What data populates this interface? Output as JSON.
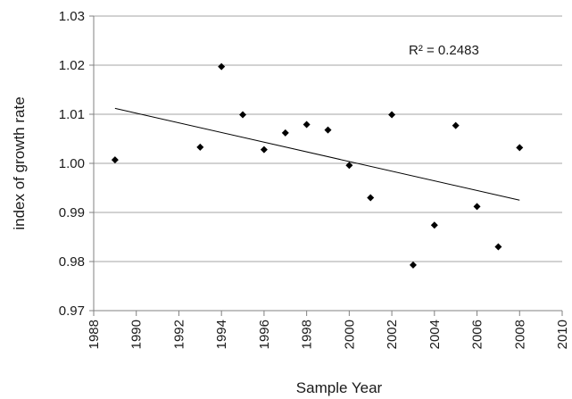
{
  "chart_data": {
    "type": "scatter",
    "title": "",
    "xlabel": "Sample Year",
    "ylabel": "index of growth rate",
    "xlim": [
      1988,
      2010
    ],
    "ylim": [
      0.97,
      1.03
    ],
    "x_ticks": [
      "1988",
      "1990",
      "1992",
      "1994",
      "1996",
      "1998",
      "2000",
      "2002",
      "2004",
      "2006",
      "2008",
      "2010"
    ],
    "y_ticks": [
      "0.97",
      "0.98",
      "0.99",
      "1.00",
      "1.01",
      "1.02",
      "1.03"
    ],
    "grid": "horizontal",
    "legend": "none",
    "series": [
      {
        "marker": "diamond",
        "color": "#000000",
        "points": [
          {
            "x": 1989,
            "y": 1.0007
          },
          {
            "x": 1993,
            "y": 1.0033
          },
          {
            "x": 1994,
            "y": 1.0197
          },
          {
            "x": 1995,
            "y": 1.0099
          },
          {
            "x": 1996,
            "y": 1.0028
          },
          {
            "x": 1997,
            "y": 1.0062
          },
          {
            "x": 1998,
            "y": 1.0079
          },
          {
            "x": 1999,
            "y": 1.0068
          },
          {
            "x": 2000,
            "y": 0.9996
          },
          {
            "x": 2001,
            "y": 0.993
          },
          {
            "x": 2002,
            "y": 1.0099
          },
          {
            "x": 2003,
            "y": 0.9793
          },
          {
            "x": 2004,
            "y": 0.9874
          },
          {
            "x": 2005,
            "y": 1.0077
          },
          {
            "x": 2006,
            "y": 0.9912
          },
          {
            "x": 2007,
            "y": 0.983
          },
          {
            "x": 2008,
            "y": 1.0032
          }
        ]
      }
    ],
    "trendline": {
      "type": "linear",
      "from": {
        "x": 1989,
        "y": 1.0112
      },
      "to": {
        "x": 2008,
        "y": 0.9925
      },
      "color": "#000000"
    },
    "annotation": "R² = 0.2483",
    "colors": {
      "grid": "#a6a6a6",
      "axis": "#808080",
      "text": "#1a1a1a",
      "background": "#ffffff"
    }
  }
}
